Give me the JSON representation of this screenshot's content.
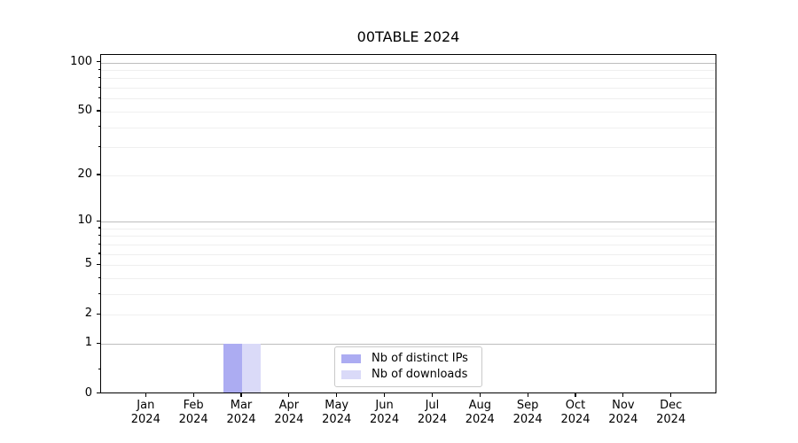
{
  "title": "00TABLE 2024",
  "chart_data": {
    "type": "bar",
    "title": "00TABLE 2024",
    "xlabel": "",
    "ylabel": "",
    "categories": [
      "Jan",
      "Feb",
      "Mar",
      "Apr",
      "May",
      "Jun",
      "Jul",
      "Aug",
      "Sep",
      "Oct",
      "Nov",
      "Dec"
    ],
    "category_year": "2024",
    "series": [
      {
        "name": "Nb of distinct IPs",
        "color": "#acacf2",
        "values": [
          0,
          0,
          1,
          0,
          0,
          0,
          0,
          0,
          0,
          0,
          0,
          0
        ]
      },
      {
        "name": "Nb of downloads",
        "color": "#dadaf8",
        "values": [
          0,
          0,
          1,
          0,
          0,
          0,
          0,
          0,
          0,
          0,
          0,
          0
        ]
      }
    ],
    "yscale": "log1p",
    "ylim": [
      0,
      112
    ],
    "y_tick_labels": [
      100,
      50,
      20,
      10,
      5,
      2,
      1,
      0
    ],
    "y_major_gridlines": [
      1,
      10,
      100
    ],
    "y_minor_gridlines": [
      2,
      3,
      4,
      5,
      6,
      7,
      8,
      9,
      20,
      30,
      40,
      50,
      60,
      70,
      80,
      90
    ],
    "y_minor_ticks": [
      0.4,
      2,
      3,
      4,
      5,
      6,
      7,
      8,
      9,
      20,
      30,
      40,
      50,
      60,
      70,
      80,
      90
    ],
    "grid": true,
    "legend_position": "lower center"
  }
}
